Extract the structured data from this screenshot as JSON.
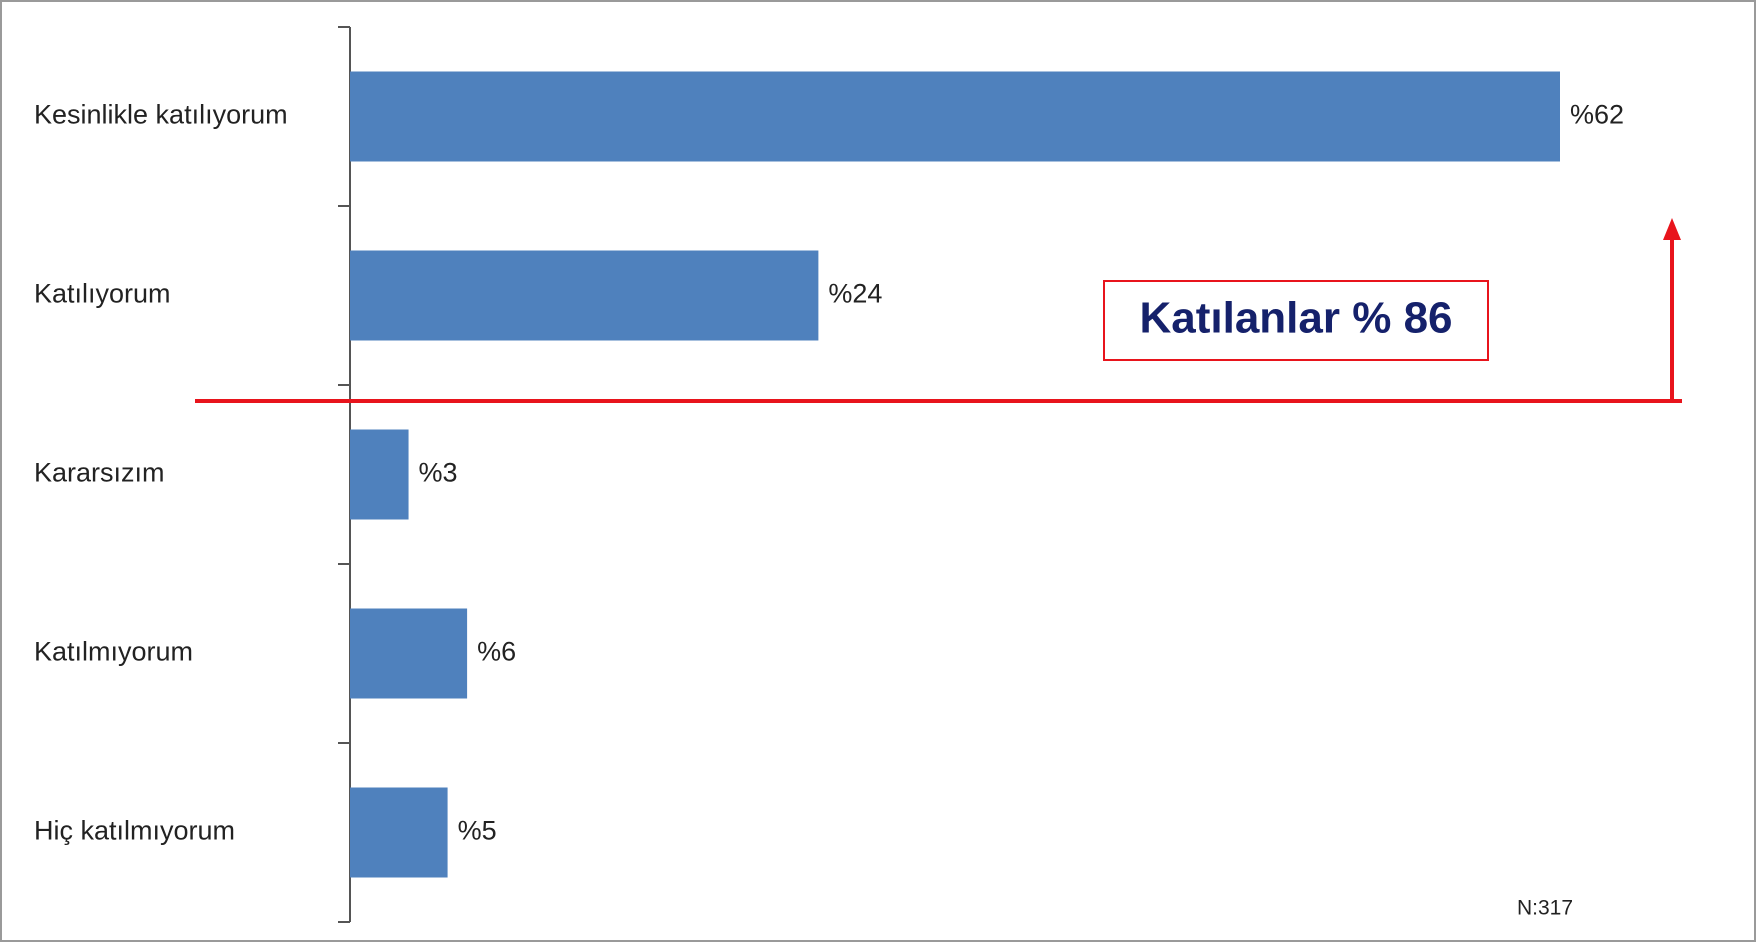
{
  "chart_data": {
    "type": "bar",
    "orientation": "horizontal",
    "categories": [
      "Kesinlikle katılıyorum",
      "Katılıyorum",
      "Kararsızım",
      "Katılmıyorum",
      "Hiç katılmıyorum"
    ],
    "values": [
      62,
      24,
      3,
      6,
      5
    ],
    "value_labels": [
      "%62",
      "%24",
      "%3",
      "%6",
      "%5"
    ],
    "color": "#4f81bd",
    "annotations": [
      "Katılanlar % 86",
      "N:317"
    ]
  }
}
